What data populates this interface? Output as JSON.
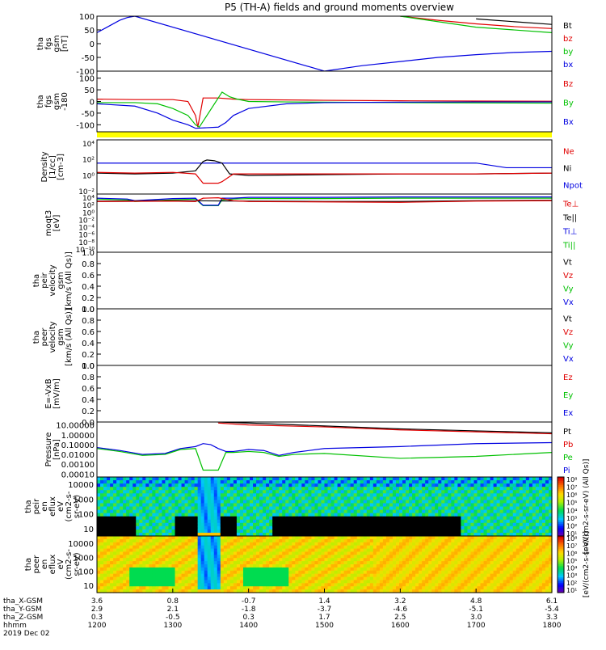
{
  "title": "P5 (TH-A) fields and ground moments overview",
  "chart_data": [
    {
      "type": "line",
      "ylabel": [
        "tha",
        "fgs",
        "gsm",
        "[nT]"
      ],
      "ylim": [
        -100,
        100
      ],
      "yticks": [
        "100",
        "50",
        "0",
        "-50",
        "-100"
      ],
      "legend": [
        {
          "name": "Bt",
          "color": "#000000"
        },
        {
          "name": "bz",
          "color": "#e00000"
        },
        {
          "name": "by",
          "color": "#00c000"
        },
        {
          "name": "bx",
          "color": "#0000e0"
        }
      ],
      "series": [
        {
          "name": "Bt",
          "color": "#000000",
          "x": [
            1330,
            1335,
            1337,
            1600,
            1700,
            1800
          ],
          "y": [
            null,
            null,
            null,
            null,
            90,
            70
          ]
        },
        {
          "name": "bz",
          "color": "#e00000",
          "x": [
            1600,
            1650,
            1700,
            1750,
            1800
          ],
          "y": [
            100,
            85,
            72,
            62,
            55
          ]
        },
        {
          "name": "by",
          "color": "#00c000",
          "x": [
            1600,
            1700,
            1800
          ],
          "y": [
            100,
            60,
            40
          ]
        },
        {
          "name": "bx",
          "color": "#0000e0",
          "x": [
            1200,
            1210,
            1220,
            1230,
            1240,
            1250,
            1500,
            1550,
            1600,
            1650,
            1700,
            1750,
            1800
          ],
          "y": [
            40,
            55,
            70,
            85,
            95,
            100,
            -100,
            -80,
            -65,
            -50,
            -40,
            -32,
            -28
          ]
        }
      ]
    },
    {
      "type": "line",
      "ylabel": [
        "tha",
        "fgs",
        "gsm",
        "-180"
      ],
      "ylim": [
        -130,
        130
      ],
      "yticks": [
        "100",
        "50",
        "0",
        "-50",
        "-100"
      ],
      "legend": [
        {
          "name": "Bz",
          "color": "#e00000"
        },
        {
          "name": "By",
          "color": "#00c000"
        },
        {
          "name": "Bx",
          "color": "#0000e0"
        }
      ],
      "series": [
        {
          "name": "Bz",
          "color": "#e00000",
          "x": [
            1200,
            1250,
            1300,
            1320,
            1330,
            1333,
            1340,
            1360,
            1380,
            1400,
            1500,
            1600,
            1700,
            1800
          ],
          "y": [
            10,
            8,
            8,
            0,
            -60,
            -110,
            15,
            15,
            10,
            8,
            5,
            3,
            2,
            1
          ]
        },
        {
          "name": "By",
          "color": "#00c000",
          "x": [
            1200,
            1250,
            1280,
            1300,
            1320,
            1330,
            1335,
            1365,
            1375,
            1385,
            1400,
            1450,
            1500,
            1600,
            1700,
            1800
          ],
          "y": [
            -5,
            -5,
            -10,
            -30,
            -60,
            -100,
            -110,
            40,
            20,
            10,
            0,
            -2,
            -3,
            -5,
            -6,
            -7
          ]
        },
        {
          "name": "Bx",
          "color": "#0000e0",
          "x": [
            1200,
            1250,
            1280,
            1300,
            1320,
            1330,
            1360,
            1370,
            1380,
            1400,
            1450,
            1500,
            1600,
            1700,
            1800
          ],
          "y": [
            -10,
            -20,
            -50,
            -80,
            -100,
            -115,
            -110,
            -90,
            -60,
            -30,
            -10,
            -5,
            -3,
            -2,
            -2
          ]
        }
      ],
      "flag_bar_color": "#ffff00"
    },
    {
      "type": "line",
      "ylabel": [
        "Density",
        "[1/cc]",
        "[cm-3]"
      ],
      "log": true,
      "ylim": [
        -3,
        4
      ],
      "ytick_labels": [
        "10⁴",
        "10²",
        "10⁰",
        "10⁻²"
      ],
      "legend": [
        {
          "name": "Ne",
          "color": "#e00000"
        },
        {
          "name": "Ni",
          "color": "#000000"
        },
        {
          "name": "Npot",
          "color": "#0000e0"
        }
      ],
      "series": [
        {
          "name": "Npot",
          "color": "#0000e0",
          "x": [
            1200,
            1300,
            1330,
            1360,
            1400,
            1500,
            1600,
            1700,
            1740,
            1800
          ],
          "y": [
            1,
            1,
            1,
            1,
            1,
            1,
            1,
            1,
            0.4,
            0.4
          ]
        },
        {
          "name": "Ni",
          "color": "#000000",
          "x": [
            1200,
            1250,
            1300,
            1330,
            1340,
            1345,
            1355,
            1365,
            1375,
            1400,
            1500,
            1600,
            1700,
            1800
          ],
          "y": [
            -0.3,
            -0.4,
            -0.3,
            0,
            1.2,
            1.4,
            1.3,
            1.0,
            -0.4,
            -0.6,
            -0.5,
            -0.4,
            -0.4,
            -0.3
          ]
        },
        {
          "name": "Ne",
          "color": "#e00000",
          "x": [
            1200,
            1250,
            1300,
            1330,
            1340,
            1360,
            1365,
            1380,
            1400,
            1500,
            1600,
            1700,
            1800
          ],
          "y": [
            -0.2,
            -0.3,
            -0.2,
            -0.4,
            -1.6,
            -1.6,
            -1.4,
            -0.4,
            -0.4,
            -0.4,
            -0.4,
            -0.4,
            -0.3
          ]
        }
      ]
    },
    {
      "type": "line",
      "ylabel": [
        "moqt3",
        "[eV]"
      ],
      "log": true,
      "ylim": [
        -10,
        4
      ],
      "ytick_labels": [
        "10⁴",
        "10²",
        "10⁰",
        "10⁻²",
        "10⁻⁴",
        "10⁻⁶",
        "10⁻⁸",
        "10⁻¹⁰"
      ],
      "legend": [
        {
          "name": "Te⊥",
          "color": "#e00000"
        },
        {
          "name": "Te||",
          "color": "#000000"
        },
        {
          "name": "Ti⊥",
          "color": "#0000e0"
        },
        {
          "name": "Ti||",
          "color": "#00c000"
        }
      ],
      "series": [
        {
          "name": "Ti||",
          "color": "#00c000",
          "x": [
            1200,
            1240,
            1250,
            1300,
            1330,
            1340,
            1360,
            1365,
            1380,
            1400,
            1500,
            1600,
            1700,
            1800
          ],
          "y": [
            2.8,
            2.6,
            2.2,
            2.6,
            2.8,
            1.2,
            1.2,
            2.6,
            2.8,
            2.9,
            2.9,
            3.0,
            3.0,
            3.0
          ]
        },
        {
          "name": "Ti⊥",
          "color": "#0000e0",
          "x": [
            1200,
            1240,
            1250,
            1300,
            1330,
            1340,
            1360,
            1365,
            1380,
            1400,
            1500,
            1600,
            1700,
            1800
          ],
          "y": [
            3.0,
            2.8,
            2.4,
            2.9,
            3.0,
            1.3,
            1.3,
            3.0,
            3.0,
            3.2,
            3.2,
            3.3,
            3.3,
            3.3
          ]
        },
        {
          "name": "Te||",
          "color": "#000000",
          "x": [
            1200,
            1300,
            1400,
            1500,
            1600,
            1700,
            1800
          ],
          "y": [
            2.3,
            2.4,
            2.3,
            2.2,
            2.2,
            2.4,
            2.5
          ]
        },
        {
          "name": "Te⊥",
          "color": "#e00000",
          "x": [
            1200,
            1300,
            1330,
            1340,
            1360,
            1380,
            1400,
            1500,
            1600,
            1700,
            1800
          ],
          "y": [
            2.2,
            2.3,
            2.2,
            3.0,
            3.1,
            2.4,
            2.2,
            2.1,
            2.0,
            2.3,
            2.4
          ]
        }
      ]
    },
    {
      "type": "line",
      "ylabel": [
        "tha",
        "peir",
        "velocity",
        "gsm",
        "[km/s (All Qs)]"
      ],
      "ylim": [
        0,
        1
      ],
      "yticks": [
        "1.0",
        "0.8",
        "0.6",
        "0.4",
        "0.2",
        "0.0"
      ],
      "legend": [
        {
          "name": "Vt",
          "color": "#000000"
        },
        {
          "name": "Vz",
          "color": "#e00000"
        },
        {
          "name": "Vy",
          "color": "#00c000"
        },
        {
          "name": "Vx",
          "color": "#0000e0"
        }
      ],
      "series": []
    },
    {
      "type": "line",
      "ylabel": [
        "tha",
        "peer",
        "velocity",
        "gsm",
        "[km/s (All Qs)]"
      ],
      "ylim": [
        0,
        1
      ],
      "yticks": [
        "1.0",
        "0.8",
        "0.6",
        "0.4",
        "0.2",
        "0.0"
      ],
      "legend": [
        {
          "name": "Vt",
          "color": "#000000"
        },
        {
          "name": "Vz",
          "color": "#e00000"
        },
        {
          "name": "Vy",
          "color": "#00c000"
        },
        {
          "name": "Vx",
          "color": "#0000e0"
        }
      ],
      "series": []
    },
    {
      "type": "line",
      "ylabel": [
        "E=-VxB",
        "[mV/m]"
      ],
      "ylim": [
        0,
        1
      ],
      "yticks": [
        "1.0",
        "0.8",
        "0.6",
        "0.4",
        "0.2",
        "0.0"
      ],
      "legend": [
        {
          "name": "Ez",
          "color": "#e00000"
        },
        {
          "name": "Ey",
          "color": "#00c000"
        },
        {
          "name": "Ex",
          "color": "#0000e0"
        }
      ],
      "series": []
    },
    {
      "type": "line",
      "ylabel": [
        "Pressure",
        "[nPa]"
      ],
      "log": true,
      "ylim": [
        -4.3,
        1.3
      ],
      "yticks": [
        "10.00000",
        "1.00000",
        "0.10000",
        "0.01000",
        "0.00100",
        "0.00010"
      ],
      "legend": [
        {
          "name": "Pt",
          "color": "#000000"
        },
        {
          "name": "Pb",
          "color": "#e00000"
        },
        {
          "name": "Pe",
          "color": "#00c000"
        },
        {
          "name": "Pi",
          "color": "#0000e0"
        }
      ],
      "series": [
        {
          "name": "Pt",
          "color": "#000000",
          "x": [
            1330,
            1340,
            1360,
            1400,
            1500,
            1600,
            1700,
            1800
          ],
          "y": [
            1.6,
            1.4,
            1.3,
            1.2,
            0.9,
            0.6,
            0.4,
            0.2
          ]
        },
        {
          "name": "Pb",
          "color": "#e00000",
          "x": [
            1360,
            1400,
            1500,
            1600,
            1700,
            1800
          ],
          "y": [
            1.2,
            1.0,
            0.8,
            0.5,
            0.3,
            0.1
          ]
        },
        {
          "name": "Pi",
          "color": "#0000e0",
          "x": [
            1200,
            1230,
            1260,
            1290,
            1310,
            1330,
            1340,
            1350,
            1360,
            1370,
            1380,
            1400,
            1420,
            1440,
            1460,
            1500,
            1600,
            1700,
            1800
          ],
          "y": [
            -1.3,
            -1.6,
            -2.0,
            -1.9,
            -1.4,
            -1.2,
            -0.9,
            -1.0,
            -1.4,
            -1.7,
            -1.7,
            -1.5,
            -1.6,
            -2.1,
            -1.8,
            -1.4,
            -1.2,
            -0.9,
            -0.8
          ]
        },
        {
          "name": "Pe",
          "color": "#00c000",
          "x": [
            1200,
            1230,
            1260,
            1290,
            1310,
            1330,
            1340,
            1350,
            1360,
            1370,
            1380,
            1400,
            1420,
            1440,
            1460,
            1500,
            1600,
            1700,
            1800
          ],
          "y": [
            -1.4,
            -1.7,
            -2.1,
            -2.0,
            -1.5,
            -1.4,
            -3.6,
            -3.6,
            -3.6,
            -1.8,
            -1.8,
            -1.7,
            -1.8,
            -2.2,
            -2.0,
            -1.9,
            -2.4,
            -2.2,
            -1.8
          ]
        }
      ]
    },
    {
      "type": "heatmap",
      "ylabel": [
        "tha",
        "peir",
        "en",
        "eflux",
        "eV",
        "(cm2-s-",
        "sr-eV)"
      ],
      "yticks": [
        "10000",
        "1000",
        "100",
        "10"
      ],
      "colorbar_label": "[eV/(cm2-s-sr-eV) (All Qs)]",
      "colorbar_ticks": [
        "10⁸",
        "10⁷",
        "10⁶",
        "10⁵",
        "10⁴",
        "10³",
        "10²",
        "10¹"
      ]
    },
    {
      "type": "heatmap",
      "ylabel": [
        "tha",
        "peer",
        "en",
        "eflux",
        "eV",
        "(cm2-s-",
        "sr-eV)"
      ],
      "yticks": [
        "10000",
        "1000",
        "100",
        "10"
      ],
      "colorbar_label": "[eV/(cm2-s-sr-eV)]",
      "colorbar_ticks": [
        "10⁸",
        "10⁷",
        "10⁶",
        "10⁵",
        "10⁴",
        "10³",
        "10²",
        "10¹"
      ]
    }
  ],
  "xaxis": {
    "rows": [
      {
        "label": "tha_X-GSM",
        "values": [
          "3.6",
          "0.8",
          "-0.7",
          "1.4",
          "3.2",
          "4.8",
          "6.1"
        ]
      },
      {
        "label": "tha_Y-GSM",
        "values": [
          "2.9",
          "2.1",
          "-1.8",
          "-3.7",
          "-4.6",
          "-5.1",
          "-5.4"
        ]
      },
      {
        "label": "tha_Z-GSM",
        "values": [
          "0.3",
          "-0.5",
          "0.3",
          "1.7",
          "2.5",
          "3.0",
          "3.3"
        ]
      },
      {
        "label": "hhmm",
        "values": [
          "1200",
          "1300",
          "1400",
          "1500",
          "1600",
          "1700",
          "1800"
        ]
      }
    ],
    "date": "2019 Dec 02"
  }
}
